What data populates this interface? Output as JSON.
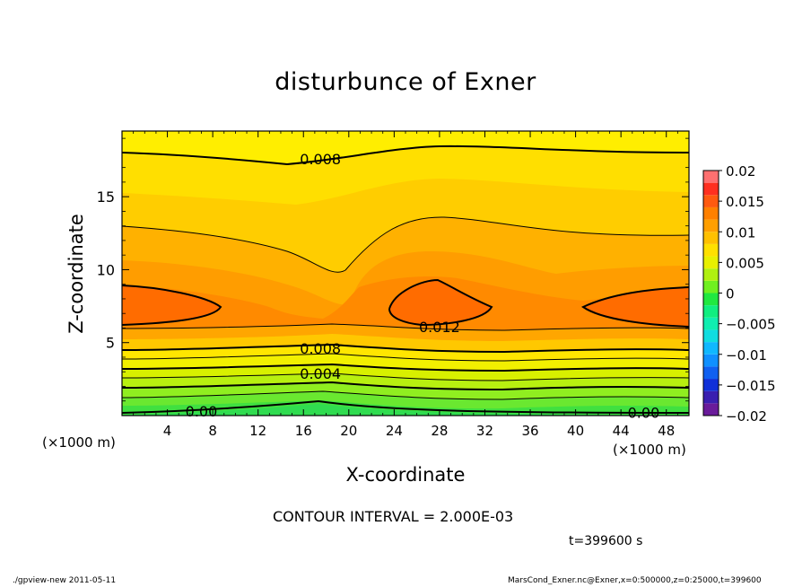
{
  "chart_data": {
    "type": "contour",
    "title": "disturbunce of Exner",
    "xlabel": "X-coordinate",
    "ylabel": "Z-coordinate",
    "x_unit": "(×1000 m)",
    "y_unit": "(×1000 m)",
    "xlim": [
      0,
      50
    ],
    "ylim": [
      0,
      19.5
    ],
    "x_ticks": [
      4,
      8,
      12,
      16,
      20,
      24,
      28,
      32,
      36,
      40,
      44,
      48
    ],
    "y_ticks": [
      5,
      10,
      15
    ],
    "contour_interval_text": "CONTOUR INTERVAL = 2.000E-03",
    "contour_labels": [
      {
        "text": "0.008",
        "x": 17.5,
        "z": 17.6
      },
      {
        "text": "0.012",
        "x": 28.0,
        "z": 6.1
      },
      {
        "text": "0.008",
        "x": 17.5,
        "z": 4.6
      },
      {
        "text": "0.004",
        "x": 17.5,
        "z": 2.9
      },
      {
        "text": "0.00",
        "x": 7.0,
        "z": 0.3
      },
      {
        "text": "0.00",
        "x": 46.0,
        "z": 0.2
      }
    ],
    "colorbar": {
      "ticks": [
        "0.02",
        "0.015",
        "0.01",
        "0.005",
        "0",
        "−0.005",
        "−0.01",
        "−0.015",
        "−0.02"
      ],
      "levels": [
        -0.02,
        -0.018,
        -0.016,
        -0.014,
        -0.012,
        -0.01,
        -0.008,
        -0.006,
        -0.004,
        -0.002,
        0,
        0.002,
        0.004,
        0.006,
        0.008,
        0.01,
        0.012,
        0.014,
        0.016,
        0.018,
        0.02
      ],
      "colors": [
        "#6a1b9a",
        "#3a1fb0",
        "#1030d8",
        "#1060f0",
        "#1090ff",
        "#10b8ff",
        "#10dde0",
        "#10eeb0",
        "#10ee80",
        "#20e840",
        "#70f020",
        "#b0f010",
        "#e8f000",
        "#ffe000",
        "#ffc000",
        "#ff9f00",
        "#ff8000",
        "#ff5a10",
        "#ff3020",
        "#ff7070"
      ]
    }
  },
  "time_label": "t=399600 s",
  "footer": {
    "left": "./gpview-new   2011-05-11",
    "right": "MarsCond_Exner.nc@Exner,x=0:500000,z=0:25000,t=399600"
  }
}
